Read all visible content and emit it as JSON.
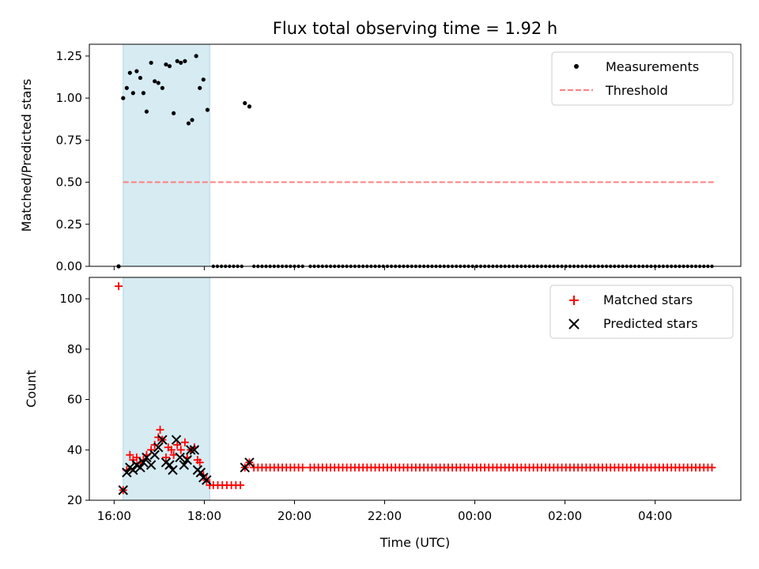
{
  "chart_data": {
    "title": "Flux total observing time = 1.92 h",
    "xlabel": "Time (UTC)",
    "x_tick_labels": [
      "16:00",
      "18:00",
      "20:00",
      "22:00",
      "00:00",
      "02:00",
      "04:00"
    ],
    "x_ticks_hours": [
      16,
      18,
      20,
      22,
      24,
      26,
      28
    ],
    "xlim_hours": [
      15.45,
      29.9
    ],
    "observing_window_hours": [
      16.2,
      18.12
    ],
    "colors": {
      "shade": "#add8e6",
      "measurement": "#000000",
      "threshold": "#ff7f7f",
      "matched": "#ff0000",
      "predicted": "#000000"
    },
    "panels": [
      {
        "type": "scatter",
        "ylabel": "Matched/Predicted stars",
        "ylim": [
          0,
          1.32
        ],
        "y_ticks": [
          0,
          0.25,
          0.5,
          0.75,
          1.0,
          1.25
        ],
        "y_tick_labels": [
          "0.00",
          "0.25",
          "0.50",
          "0.75",
          "1.00",
          "1.25"
        ],
        "legend": {
          "position": "upper right",
          "entries": [
            "Measurements",
            "Threshold"
          ]
        },
        "threshold": {
          "value": 0.5,
          "x_range_hours": [
            16.2,
            29.3
          ]
        },
        "measurements": [
          [
            16.1,
            0.0
          ],
          [
            16.2,
            1.0
          ],
          [
            16.28,
            1.06
          ],
          [
            16.35,
            1.15
          ],
          [
            16.42,
            1.03
          ],
          [
            16.5,
            1.16
          ],
          [
            16.58,
            1.12
          ],
          [
            16.65,
            1.03
          ],
          [
            16.72,
            0.92
          ],
          [
            16.82,
            1.21
          ],
          [
            16.9,
            1.1
          ],
          [
            16.98,
            1.09
          ],
          [
            17.07,
            1.06
          ],
          [
            17.15,
            1.2
          ],
          [
            17.23,
            1.19
          ],
          [
            17.32,
            0.91
          ],
          [
            17.4,
            1.22
          ],
          [
            17.48,
            1.21
          ],
          [
            17.57,
            1.22
          ],
          [
            17.65,
            0.85
          ],
          [
            17.73,
            0.87
          ],
          [
            17.82,
            1.25
          ],
          [
            17.9,
            1.06
          ],
          [
            17.98,
            1.11
          ],
          [
            18.07,
            0.93
          ],
          [
            18.9,
            0.97
          ],
          [
            19.0,
            0.95
          ]
        ],
        "zero_series": {
          "x_ranges_hours": [
            [
              18.2,
              18.9
            ],
            [
              19.1,
              20.25
            ],
            [
              20.35,
              29.3
            ]
          ],
          "step_hours": 0.09,
          "value": 0
        }
      },
      {
        "type": "scatter",
        "ylabel": "Count",
        "ylim": [
          20,
          108.5
        ],
        "y_ticks": [
          20,
          40,
          60,
          80,
          100
        ],
        "y_tick_labels": [
          "20",
          "40",
          "60",
          "80",
          "100"
        ],
        "legend": {
          "position": "upper right",
          "entries": [
            "Matched stars",
            "Predicted stars"
          ]
        },
        "matched": [
          [
            16.1,
            105
          ],
          [
            16.2,
            24
          ],
          [
            16.28,
            32
          ],
          [
            16.35,
            38
          ],
          [
            16.42,
            36
          ],
          [
            16.5,
            37
          ],
          [
            16.58,
            35
          ],
          [
            16.65,
            36
          ],
          [
            16.72,
            38
          ],
          [
            16.82,
            40
          ],
          [
            16.9,
            42
          ],
          [
            16.98,
            45
          ],
          [
            17.02,
            48
          ],
          [
            17.07,
            44
          ],
          [
            17.15,
            37
          ],
          [
            17.2,
            41
          ],
          [
            17.27,
            40
          ],
          [
            17.32,
            38
          ],
          [
            17.4,
            42
          ],
          [
            17.48,
            40
          ],
          [
            17.57,
            43
          ],
          [
            17.62,
            37
          ],
          [
            17.7,
            40
          ],
          [
            17.78,
            41
          ],
          [
            17.85,
            36
          ],
          [
            17.9,
            35
          ],
          [
            17.98,
            30
          ],
          [
            18.05,
            28
          ],
          [
            18.12,
            26
          ],
          [
            18.2,
            26
          ],
          [
            18.3,
            26
          ],
          [
            18.4,
            26
          ],
          [
            18.5,
            26
          ],
          [
            18.6,
            26
          ],
          [
            18.7,
            26
          ],
          [
            18.8,
            26
          ],
          [
            18.9,
            33
          ],
          [
            19.0,
            35
          ]
        ],
        "matched_flat": {
          "x_ranges_hours": [
            [
              19.1,
              20.25
            ],
            [
              20.35,
              29.3
            ]
          ],
          "step_hours": 0.09,
          "value": 33
        },
        "predicted": [
          [
            16.2,
            24
          ],
          [
            16.28,
            31
          ],
          [
            16.35,
            33
          ],
          [
            16.42,
            32
          ],
          [
            16.5,
            34
          ],
          [
            16.58,
            33
          ],
          [
            16.65,
            35
          ],
          [
            16.72,
            37
          ],
          [
            16.82,
            34
          ],
          [
            16.9,
            38
          ],
          [
            16.98,
            41
          ],
          [
            17.07,
            44
          ],
          [
            17.15,
            35
          ],
          [
            17.23,
            34
          ],
          [
            17.3,
            32
          ],
          [
            17.38,
            44
          ],
          [
            17.46,
            37
          ],
          [
            17.55,
            34
          ],
          [
            17.62,
            36
          ],
          [
            17.7,
            40
          ],
          [
            17.78,
            40
          ],
          [
            17.85,
            32
          ],
          [
            17.92,
            31
          ],
          [
            17.98,
            29
          ],
          [
            18.05,
            28
          ],
          [
            18.9,
            33
          ],
          [
            19.0,
            35
          ]
        ]
      }
    ]
  }
}
